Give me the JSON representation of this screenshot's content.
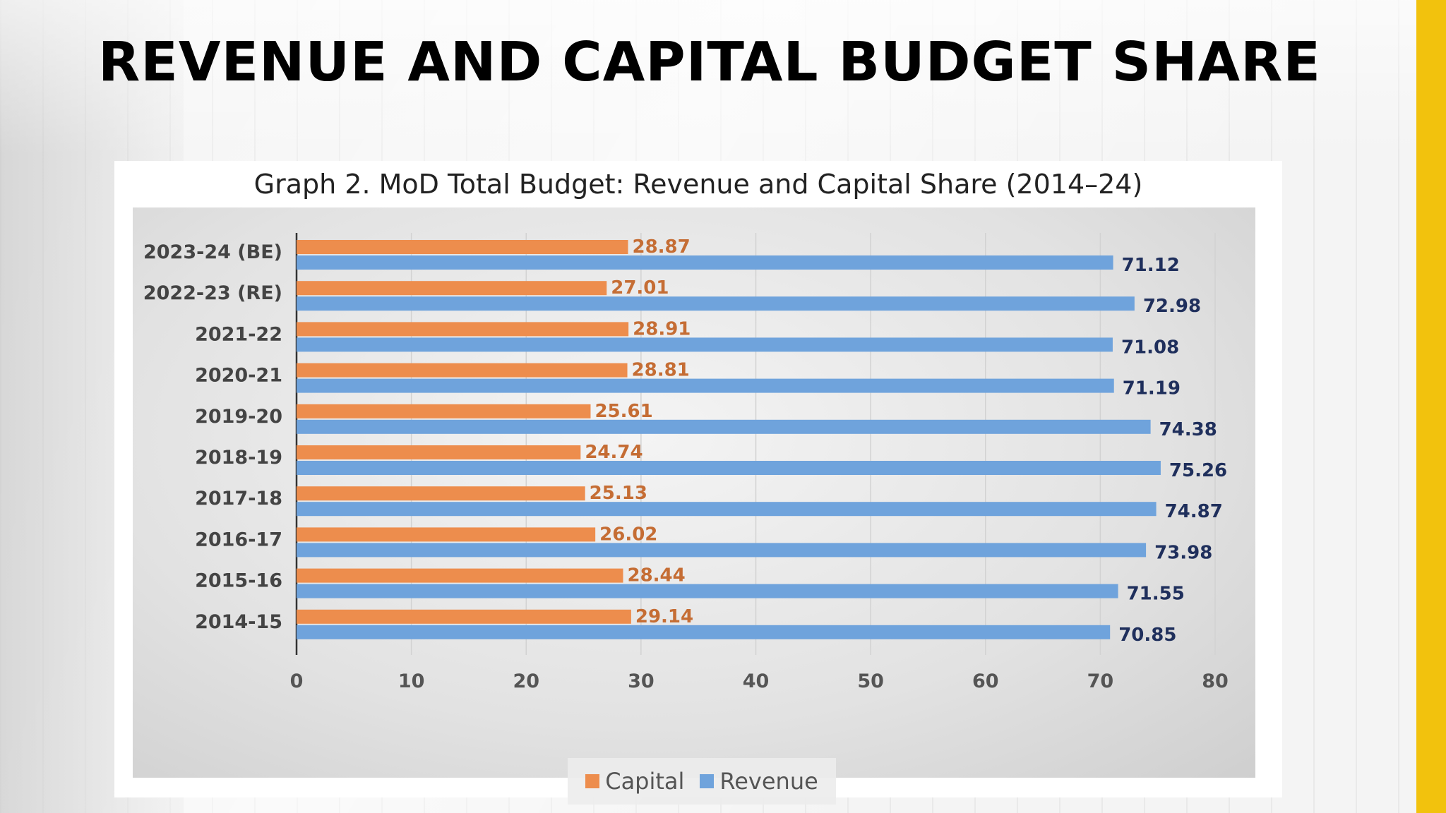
{
  "slide": {
    "title": "REVENUE AND CAPITAL BUDGET SHARE",
    "accent_color": "#f2c20d"
  },
  "chart_data": {
    "type": "bar",
    "orientation": "horizontal",
    "title": "Graph 2. MoD Total Budget: Revenue and Capital Share (2014–24)",
    "categories": [
      "2023-24 (BE)",
      "2022-23 (RE)",
      "2021-22",
      "2020-21",
      "2019-20",
      "2018-19",
      "2017-18",
      "2016-17",
      "2015-16",
      "2014-15"
    ],
    "series": [
      {
        "name": "Capital",
        "color": "#ed8d4d",
        "label_color": "#c56d34",
        "values": [
          28.87,
          27.01,
          28.91,
          28.81,
          25.61,
          24.74,
          25.13,
          26.02,
          28.44,
          29.14
        ]
      },
      {
        "name": "Revenue",
        "color": "#6fa3dc",
        "label_color": "#1f2f5c",
        "values": [
          71.12,
          72.98,
          71.08,
          71.19,
          74.38,
          75.26,
          74.87,
          73.98,
          71.55,
          70.85
        ]
      }
    ],
    "xlim": [
      0,
      80
    ],
    "xticks": [
      0,
      10,
      20,
      30,
      40,
      50,
      60,
      70,
      80
    ],
    "grid": "vertical",
    "legend": "bottom-center",
    "xlabel": "",
    "ylabel": ""
  }
}
